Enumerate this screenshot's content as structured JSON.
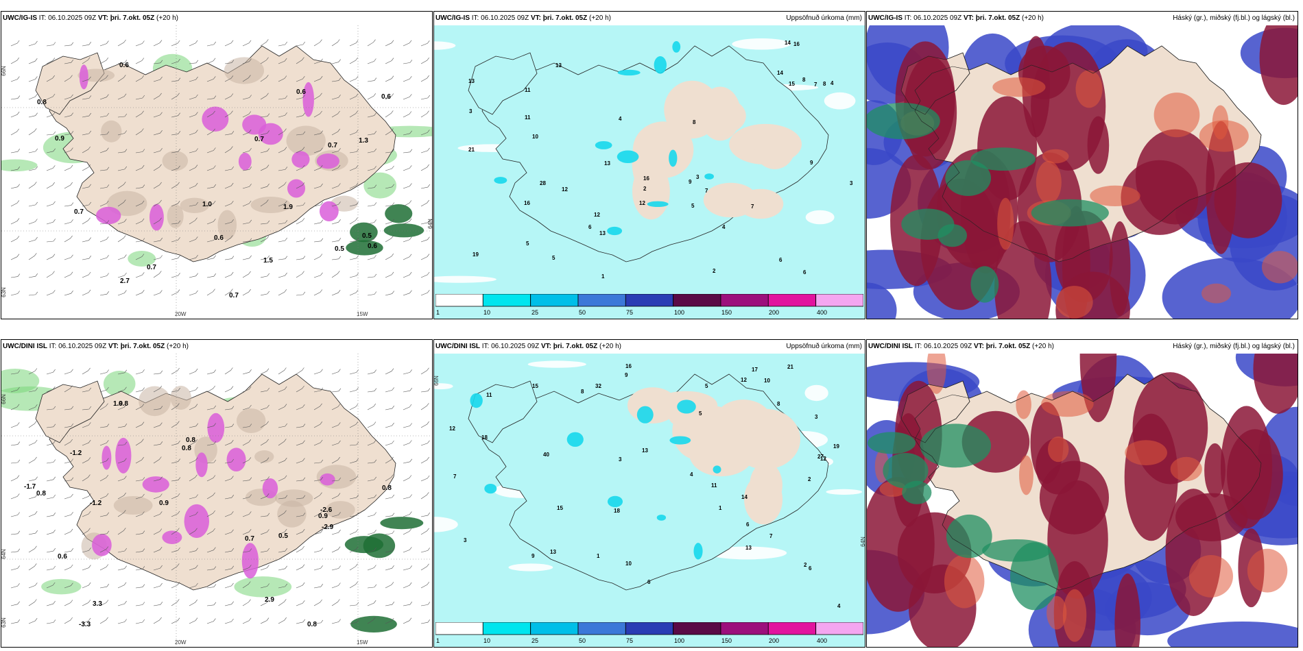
{
  "panels": [
    {
      "id": "p1",
      "model": "UWC/IG-IS",
      "it_label": "IT:",
      "it": "06.10.2025 09Z",
      "vt_label": "VT:",
      "vt": "þri. 7.okt. 05Z",
      "lead": "(+20 h)",
      "right": "",
      "type": "wind"
    },
    {
      "id": "p2",
      "model": "UWC/IG-IS",
      "it_label": "IT:",
      "it": "06.10.2025 09Z",
      "vt_label": "VT:",
      "vt": "þri. 7.okt. 05Z",
      "lead": "(+20 h)",
      "right": "Uppsöfnuð úrkoma (mm)",
      "type": "precip"
    },
    {
      "id": "p3",
      "model": "UWC/IG-IS",
      "it_label": "IT:",
      "it": "06.10.2025 09Z",
      "vt_label": "VT:",
      "vt": "þri. 7.okt. 05Z",
      "lead": "(+20 h)",
      "right": "Háský (gr.), miðský (fj.bl.) og lágský (bl.)",
      "type": "cloud"
    },
    {
      "id": "p4",
      "model": "UWC/DINI ISL",
      "it_label": "IT:",
      "it": "06.10.2025 09Z",
      "vt_label": "VT:",
      "vt": "þri. 7.okt. 05Z",
      "lead": "(+20 h)",
      "right": "",
      "type": "wind"
    },
    {
      "id": "p5",
      "model": "UWC/DINI ISL",
      "it_label": "IT:",
      "it": "06.10.2025 09Z",
      "vt_label": "VT:",
      "vt": "þri. 7.okt. 05Z",
      "lead": "(+20 h)",
      "right": "Uppsöfnuð úrkoma (mm)",
      "type": "precip"
    },
    {
      "id": "p6",
      "model": "UWC/DINI ISL",
      "it_label": "IT:",
      "it": "06.10.2025 09Z",
      "vt_label": "VT:",
      "vt": "þri. 7.okt. 05Z",
      "lead": "(+20 h)",
      "right": "Háský (gr.), miðský (fj.bl.) og lágský (bl.)",
      "type": "cloud"
    }
  ],
  "axes": {
    "lon_20": "20W",
    "lon_15": "15W",
    "lat_66": "66N",
    "lat_64": "64N",
    "lat_63": "63N"
  },
  "colorbar": {
    "labels": [
      "1",
      "10",
      "25",
      "50",
      "75",
      "100",
      "150",
      "200",
      "400"
    ],
    "colors": [
      "#ffffff",
      "#00e5ee",
      "#00bfe8",
      "#3c78d8",
      "#2a3cb4",
      "#5a0a46",
      "#9c0f7c",
      "#e2149e",
      "#f4a6f0"
    ]
  },
  "colors": {
    "land": "#efdfd0",
    "precip_sea": "#b6f6f6",
    "precip_cyan": "#17d8ec",
    "magenta": "#d95ed9",
    "green": "#7ad67a",
    "darkgreen": "#1f6f35",
    "cloud_high": "#8b1637",
    "cloud_mid": "#3a48c8",
    "cloud_low": "#1f8f62"
  },
  "wind_labels_top": [
    "0.7",
    "0.8",
    "0.7",
    "1.0",
    "0.5",
    "0.6",
    "0.6",
    "0.7",
    "0.6",
    "2.7",
    "0.9",
    "1.5",
    "0.7",
    "0.5",
    "0.6",
    "0.6",
    "1.9",
    "1.3",
    "0.7"
  ],
  "wind_labels_bottom": [
    "-1.2",
    "-1.7",
    "0.5",
    "0.8",
    "-3.3",
    "-2.6",
    "-1.2",
    "-2.9",
    "0.8",
    "0.8",
    "0.7",
    "3.3",
    "2.9",
    "0.6",
    "0.8",
    "0.9",
    "0.9",
    "0.8",
    "0.8",
    "1.9"
  ],
  "precip_labels_top": [
    "16",
    "11",
    "12",
    "28",
    "12",
    "13",
    "14",
    "13",
    "7",
    "9",
    "8",
    "5",
    "4",
    "3",
    "6",
    "10",
    "12",
    "21",
    "16",
    "11",
    "15",
    "13",
    "14",
    "19",
    "16",
    "13",
    "7",
    "5",
    "8",
    "4",
    "2",
    "3",
    "6",
    "9",
    "1",
    "2",
    "5",
    "8",
    "7",
    "4",
    "6",
    "3"
  ],
  "precip_labels_bottom": [
    "13",
    "40",
    "32",
    "27",
    "15",
    "18",
    "21",
    "19",
    "18",
    "12",
    "16",
    "14",
    "11",
    "13",
    "9",
    "8",
    "6",
    "5",
    "4",
    "3",
    "2",
    "1",
    "7",
    "10",
    "12",
    "15",
    "17",
    "13",
    "8",
    "6",
    "3",
    "2",
    "5",
    "9",
    "4",
    "11",
    "10",
    "7",
    "12",
    "1",
    "3",
    "6"
  ]
}
